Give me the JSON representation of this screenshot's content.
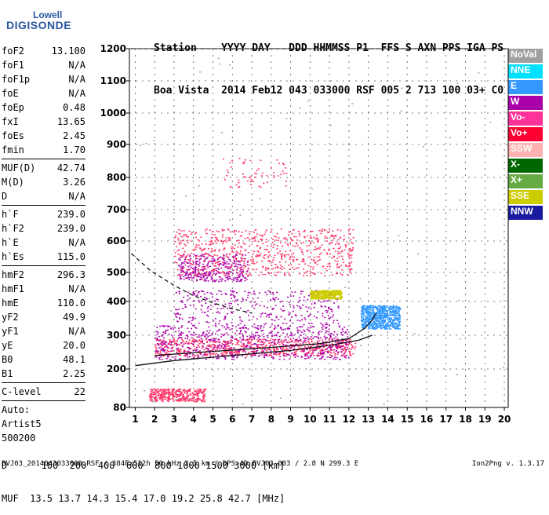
{
  "logo": {
    "line1": "Lowell",
    "line2": "DIGISONDE"
  },
  "header": {
    "labels": "Station    YYYY DAY   DDD HHMMSS P1  FFS S AXN PPS IGA PS",
    "values": "Boa Vista  2014 Feb12 043 033000 RSF 005 2 713 100 03+ C0"
  },
  "params": [
    {
      "k": "foF2",
      "v": "13.100"
    },
    {
      "k": "foF1",
      "v": "N/A"
    },
    {
      "k": "foF1p",
      "v": "N/A"
    },
    {
      "k": "foE",
      "v": "N/A"
    },
    {
      "k": "foEp",
      "v": "0.48"
    },
    {
      "k": "fxI",
      "v": "13.65"
    },
    {
      "k": "foEs",
      "v": "2.45"
    },
    {
      "k": "fmin",
      "v": "1.70"
    },
    {
      "sep": true
    },
    {
      "k": "MUF(D)",
      "v": "42.74"
    },
    {
      "k": "M(D)",
      "v": "3.26"
    },
    {
      "k": "D",
      "v": "N/A"
    },
    {
      "sep": true
    },
    {
      "k": "h`F",
      "v": "239.0"
    },
    {
      "k": "h`F2",
      "v": "239.0"
    },
    {
      "k": "h`E",
      "v": "N/A"
    },
    {
      "k": "h`Es",
      "v": "115.0"
    },
    {
      "sep": true
    },
    {
      "k": "hmF2",
      "v": "296.3"
    },
    {
      "k": "hmF1",
      "v": "N/A"
    },
    {
      "k": "hmE",
      "v": "110.0"
    },
    {
      "k": "yF2",
      "v": "49.9"
    },
    {
      "k": "yF1",
      "v": "N/A"
    },
    {
      "k": "yE",
      "v": "20.0"
    },
    {
      "k": "B0",
      "v": "48.1"
    },
    {
      "k": "B1",
      "v": "2.25"
    },
    {
      "sep": true
    },
    {
      "k": "C-level",
      "v": "22"
    },
    {
      "sep": true
    }
  ],
  "auto": [
    "Auto:",
    "Artist5",
    "500200"
  ],
  "legend": [
    {
      "label": "NoVal",
      "color": "#a0a0a0"
    },
    {
      "label": "NNE",
      "color": "#00e0ff"
    },
    {
      "label": "E",
      "color": "#3399ff"
    },
    {
      "label": "W",
      "color": "#aa00aa"
    },
    {
      "label": "Vo-",
      "color": "#ff3399"
    },
    {
      "label": "Vo+",
      "color": "#ff0033"
    },
    {
      "label": "SSW",
      "color": "#ffb0b0"
    },
    {
      "label": "X-",
      "color": "#006600"
    },
    {
      "label": "X+",
      "color": "#66aa44"
    },
    {
      "label": "SSE",
      "color": "#cccc00"
    },
    {
      "label": "NNW",
      "color": "#1a1aa0"
    }
  ],
  "footer": {
    "d_line": "D      100  200  400  600  800 1000 1500 3000 [km]",
    "muf_line": "MUF  13.5 13.7 14.3 15.4 17.0 19.2 25.8 42.7 [MHz]"
  },
  "fileinfo": "BVJ03_2014043033000.RSF / 384Fx512h 50 kHz 2.5 km / DPS-4D BVJ03 003 / 2.8 N 299.3 E",
  "version": "Ion2Png v. 1.3.17",
  "chart_data": {
    "type": "scatter",
    "xlim": [
      0.7,
      20.2
    ],
    "ylim": [
      80,
      1200
    ],
    "xticks": [
      1,
      2,
      3,
      4,
      5,
      6,
      7,
      8,
      9,
      10,
      11,
      12,
      13,
      14,
      15,
      16,
      17,
      18,
      19,
      20
    ],
    "yticks": [
      80,
      200,
      300,
      400,
      500,
      600,
      700,
      800,
      900,
      1000,
      1100,
      1200
    ],
    "grid": true,
    "echo_regions": [
      {
        "name": "F2 O-mode trace",
        "color": "#ff3366",
        "x": [
          2.0,
          12.3
        ],
        "y": [
          240,
          290
        ],
        "density": "high"
      },
      {
        "name": "F2 O-mode",
        "color": "#aa00aa",
        "x": [
          2.0,
          12.0
        ],
        "y": [
          230,
          330
        ],
        "density": "high"
      },
      {
        "name": "Spread F",
        "color": "#aa00aa",
        "x": [
          3.0,
          11.5
        ],
        "y": [
          330,
          440
        ],
        "density": "medium"
      },
      {
        "name": "Spread F second hop",
        "color": "#aa00aa",
        "x": [
          3.2,
          6.8
        ],
        "y": [
          470,
          560
        ],
        "density": "medium"
      },
      {
        "name": "Multihop 2F trace",
        "color": "#ff3366",
        "x": [
          3.0,
          12.2
        ],
        "y": [
          490,
          640
        ],
        "density": "high"
      },
      {
        "name": "Third hop",
        "color": "#ff3366",
        "x": [
          5.5,
          8.8
        ],
        "y": [
          770,
          860
        ],
        "density": "low"
      },
      {
        "name": "Es SSE",
        "color": "#cccc00",
        "x": [
          10.0,
          11.6
        ],
        "y": [
          410,
          440
        ],
        "density": "medium"
      },
      {
        "name": "NNE cusp",
        "color": "#3399ff",
        "x": [
          12.6,
          14.6
        ],
        "y": [
          320,
          390
        ],
        "density": "high"
      },
      {
        "name": "Es layer",
        "color": "#ff3366",
        "x": [
          1.7,
          4.6
        ],
        "y": [
          100,
          140
        ],
        "density": "medium"
      },
      {
        "name": "Noise",
        "color": "#a0a0a0",
        "x": [
          1.0,
          20.0
        ],
        "y": [
          80,
          1200
        ],
        "density": "low"
      }
    ],
    "lines": [
      {
        "name": "O-trace model",
        "style": "solid",
        "points": [
          [
            1.0,
            210
          ],
          [
            3.0,
            225
          ],
          [
            6.0,
            240
          ],
          [
            9.0,
            255
          ],
          [
            11.0,
            270
          ],
          [
            12.5,
            285
          ],
          [
            13.2,
            300
          ]
        ]
      },
      {
        "name": "O-trace inner",
        "style": "solid",
        "points": [
          [
            2.0,
            240
          ],
          [
            5.0,
            252
          ],
          [
            8.0,
            264
          ],
          [
            10.5,
            275
          ],
          [
            12.0,
            290
          ],
          [
            12.8,
            320
          ],
          [
            13.2,
            345
          ],
          [
            13.4,
            365
          ]
        ]
      },
      {
        "name": "Profile",
        "style": "dashed",
        "points": [
          [
            0.8,
            560
          ],
          [
            1.8,
            505
          ],
          [
            3.0,
            455
          ],
          [
            4.0,
            420
          ],
          [
            5.0,
            396
          ],
          [
            6.0,
            378
          ],
          [
            7.0,
            366
          ]
        ]
      }
    ]
  }
}
